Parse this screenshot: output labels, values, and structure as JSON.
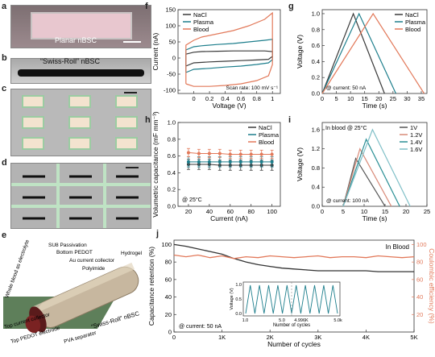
{
  "panels": {
    "a": {
      "label": "a",
      "caption": "Planar nBSC"
    },
    "b": {
      "label": "b",
      "caption": "“Swiss-Roll” nBSC"
    },
    "c": {
      "label": "c"
    },
    "d": {
      "label": "d"
    },
    "e": {
      "label": "e",
      "callouts": [
        "SU8 Passivation",
        "Bottom PEDOT",
        "Au current collector",
        "Polyimide",
        "Hydrogel",
        "Whole blood as electrolyte",
        "Top current collector",
        "Top PEDOT electrode",
        "PVA separator",
        "“Swiss-Roll” nBSC"
      ]
    },
    "f": {
      "label": "f"
    },
    "g": {
      "label": "g"
    },
    "h": {
      "label": "h"
    },
    "i": {
      "label": "i"
    },
    "j": {
      "label": "j"
    }
  },
  "colors": {
    "nacl": "#3a3a3a",
    "plasma": "#1d7e8c",
    "blood": "#e2795a",
    "v1": "#555555",
    "v12": "#d98a78",
    "v14": "#2a8f95",
    "v16": "#7fbfc7",
    "retention": "#333333",
    "ce": "#e2795a"
  },
  "chart_data": [
    {
      "id": "f",
      "type": "line",
      "xlabel": "Voltage (V)",
      "ylabel": "Current (nA)",
      "xlim": [
        -0.2,
        1.1
      ],
      "ylim": [
        -110,
        150
      ],
      "xticks": [
        0.0,
        0.2,
        0.4,
        0.6,
        0.8,
        1.0
      ],
      "yticks": [
        -100,
        -50,
        0,
        50,
        100,
        150
      ],
      "annotation": "Scan rate: 100 mV s⁻¹",
      "legend": [
        "NaCl",
        "Plasma",
        "Blood"
      ],
      "legend_position": "top-left",
      "series": [
        {
          "name": "NaCl",
          "x": [
            -0.1,
            0.0,
            0.2,
            0.4,
            0.6,
            0.8,
            0.95,
            1.0,
            1.0,
            0.9,
            0.7,
            0.5,
            0.3,
            0.1,
            0.0,
            -0.1,
            -0.1
          ],
          "y": [
            -25,
            -15,
            -12,
            -10,
            -8,
            -6,
            -4,
            5,
            20,
            22,
            22,
            22,
            21,
            20,
            18,
            12,
            -25
          ]
        },
        {
          "name": "Plasma",
          "x": [
            -0.1,
            0.0,
            0.2,
            0.4,
            0.6,
            0.8,
            0.95,
            1.0,
            1.0,
            0.9,
            0.7,
            0.5,
            0.3,
            0.1,
            0.0,
            -0.1,
            -0.1
          ],
          "y": [
            -45,
            -35,
            -32,
            -28,
            -25,
            -20,
            -15,
            -5,
            58,
            55,
            50,
            45,
            42,
            38,
            35,
            25,
            -45
          ]
        },
        {
          "name": "Blood",
          "x": [
            -0.1,
            0.0,
            0.2,
            0.4,
            0.6,
            0.8,
            0.95,
            1.0,
            1.0,
            0.9,
            0.7,
            0.5,
            0.3,
            0.1,
            0.0,
            -0.1,
            -0.1
          ],
          "y": [
            -80,
            -88,
            -88,
            -85,
            -80,
            -70,
            -55,
            -20,
            140,
            120,
            100,
            85,
            75,
            65,
            55,
            40,
            -80
          ]
        }
      ]
    },
    {
      "id": "g",
      "type": "line",
      "xlabel": "Time (s)",
      "ylabel": "Voltage (V)",
      "xlim": [
        0,
        37
      ],
      "ylim": [
        0,
        1.05
      ],
      "xticks": [
        0,
        5,
        10,
        15,
        20,
        25,
        30,
        35
      ],
      "yticks": [
        0.0,
        0.2,
        0.4,
        0.6,
        0.8,
        1.0
      ],
      "annotation": "@ current: 50 nA",
      "legend": [
        "NaCl",
        "Plasma",
        "Blood"
      ],
      "legend_position": "top-right",
      "series": [
        {
          "name": "NaCl",
          "x": [
            0,
            11,
            22
          ],
          "y": [
            0,
            1.0,
            0
          ]
        },
        {
          "name": "Plasma",
          "x": [
            0,
            13,
            26
          ],
          "y": [
            0,
            1.0,
            0
          ]
        },
        {
          "name": "Blood",
          "x": [
            0,
            18,
            36
          ],
          "y": [
            0,
            1.0,
            0
          ]
        }
      ]
    },
    {
      "id": "h",
      "type": "line",
      "xlabel": "Current (nA)",
      "ylabel": "Volumetric capacitance (mF mm⁻³)",
      "xlim": [
        10,
        108
      ],
      "ylim": [
        0.0,
        1.0
      ],
      "xticks": [
        20,
        40,
        60,
        80,
        100
      ],
      "yticks": [
        0.0,
        0.2,
        0.4,
        0.6,
        0.8,
        1.0
      ],
      "annotation": "@ 25°C",
      "legend": [
        "NaCl",
        "Plasma",
        "Blood"
      ],
      "legend_position": "top-right",
      "series": [
        {
          "name": "NaCl",
          "x": [
            20,
            30,
            40,
            50,
            60,
            70,
            80,
            90,
            100
          ],
          "y": [
            0.5,
            0.5,
            0.5,
            0.49,
            0.49,
            0.49,
            0.49,
            0.49,
            0.49
          ],
          "err": 0.06
        },
        {
          "name": "Plasma",
          "x": [
            20,
            30,
            40,
            50,
            60,
            70,
            80,
            90,
            100
          ],
          "y": [
            0.53,
            0.53,
            0.53,
            0.53,
            0.53,
            0.53,
            0.53,
            0.53,
            0.53
          ],
          "err": 0.06
        },
        {
          "name": "Blood",
          "x": [
            20,
            30,
            40,
            50,
            60,
            70,
            80,
            90,
            100
          ],
          "y": [
            0.64,
            0.63,
            0.63,
            0.63,
            0.62,
            0.62,
            0.62,
            0.62,
            0.62
          ],
          "err": 0.05
        }
      ]
    },
    {
      "id": "i",
      "type": "line",
      "xlabel": "Time (s)",
      "ylabel": "Voltage (V)",
      "xlim": [
        0,
        25
      ],
      "ylim": [
        0,
        1.75
      ],
      "xticks": [
        0,
        5,
        10,
        15,
        20,
        25
      ],
      "yticks": [
        0.0,
        0.4,
        0.8,
        1.2,
        1.6
      ],
      "title_in_plot": "In blood @ 25°C",
      "annotation": "@ current: 100 nA",
      "legend": [
        "1V",
        "1.2V",
        "1.4V",
        "1.6V"
      ],
      "legend_position": "top-right",
      "series": [
        {
          "name": "1V",
          "x": [
            5,
            8,
            15
          ],
          "y": [
            0,
            1.0,
            0
          ]
        },
        {
          "name": "1.2V",
          "x": [
            5,
            9,
            16.5
          ],
          "y": [
            0,
            1.2,
            0
          ]
        },
        {
          "name": "1.4V",
          "x": [
            5,
            10.5,
            18.5
          ],
          "y": [
            0,
            1.4,
            0
          ]
        },
        {
          "name": "1.6V",
          "x": [
            5,
            12,
            21
          ],
          "y": [
            0,
            1.6,
            0
          ]
        }
      ]
    },
    {
      "id": "j",
      "type": "line",
      "xlabel": "Number of cycles",
      "ylabel": "Capacitance retention (%)",
      "y2label": "Coulombic efficiency (%)",
      "xlim": [
        0,
        5000
      ],
      "ylim": [
        0,
        105
      ],
      "y2lim": [
        0,
        105
      ],
      "xticks": [
        0,
        1000,
        2000,
        3000,
        4000,
        5000
      ],
      "xticklabels": [
        "0",
        "1K",
        "2K",
        "3K",
        "4K",
        "5K"
      ],
      "yticks": [
        0,
        20,
        40,
        60,
        80,
        100
      ],
      "y2ticks": [
        20,
        40,
        60,
        80,
        100
      ],
      "title_in_plot": "In Blood",
      "annotation": "@ current: 50 nA",
      "series": [
        {
          "name": "Capacitance retention",
          "axis": "left",
          "x": [
            0,
            250,
            500,
            750,
            1000,
            1250,
            1500,
            1750,
            2000,
            2250,
            2500,
            2750,
            3000,
            3250,
            3500,
            3750,
            4000,
            4250,
            4500,
            4750,
            5000
          ],
          "y": [
            100,
            98,
            95,
            92,
            89,
            84,
            80,
            77,
            75,
            73,
            72,
            71,
            70,
            70,
            70,
            70,
            70,
            69,
            69,
            69,
            69
          ]
        },
        {
          "name": "Coulombic efficiency",
          "axis": "right",
          "x": [
            0,
            250,
            500,
            750,
            1000,
            1250,
            1500,
            1750,
            2000,
            2250,
            2500,
            2750,
            3000,
            3250,
            3500,
            3750,
            4000,
            4250,
            4500,
            4750,
            5000
          ],
          "y": [
            88,
            86,
            88,
            85,
            87,
            84,
            86,
            85,
            87,
            86,
            85,
            86,
            87,
            85,
            86,
            86,
            85,
            87,
            86,
            85,
            86
          ]
        }
      ],
      "inset": {
        "xlabel": "Number of cycles",
        "ylabel": "Voltage (V)",
        "xticklabels": [
          "1.0",
          "5.0",
          "4.996K",
          "5.0k"
        ],
        "yticks": [
          0.0,
          0.5,
          1.0
        ],
        "segments": [
          {
            "cycles": 5
          },
          {
            "cycles": 5
          }
        ]
      }
    }
  ]
}
